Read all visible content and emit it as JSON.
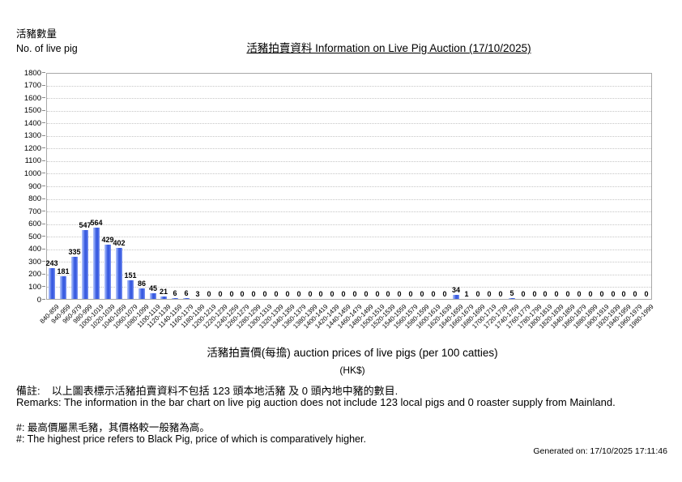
{
  "header": {
    "y_axis_label_zh": "活豬數量",
    "y_axis_label_en": "No. of live pig",
    "title": "活豬拍賣資料 Information on Live Pig Auction (17/10/2025)"
  },
  "chart_data": {
    "type": "bar",
    "title": "活豬拍賣資料 Information on Live Pig Auction (17/10/2025)",
    "categories": [
      "840-859",
      "940-959",
      "960-979",
      "980-999",
      "1000-1019",
      "1020-1039",
      "1040-1059",
      "1060-1079",
      "1080-1099",
      "1100-1119",
      "1120-1139",
      "1140-1159",
      "1160-1179",
      "1180-1199",
      "1200-1219",
      "1220-1239",
      "1240-1259",
      "1260-1279",
      "1280-1299",
      "1300-1319",
      "1320-1339",
      "1340-1359",
      "1360-1379",
      "1380-1399",
      "1400-1419",
      "1420-1439",
      "1440-1459",
      "1460-1479",
      "1480-1499",
      "1500-1519",
      "1520-1539",
      "1540-1559",
      "1560-1579",
      "1580-1599",
      "1600-1619",
      "1620-1639",
      "1640-1659",
      "1660-1679",
      "1680-1699",
      "1700-1719",
      "1720-1739",
      "1740-1759",
      "1760-1779",
      "1780-1799",
      "1800-1819",
      "1820-1839",
      "1840-1859",
      "1860-1879",
      "1880-1899",
      "1900-1919",
      "1920-1939",
      "1940-1959",
      "1960-1979",
      "1980-1999"
    ],
    "values": [
      243,
      181,
      335,
      547,
      564,
      429,
      402,
      151,
      86,
      45,
      21,
      6,
      6,
      3,
      0,
      0,
      0,
      0,
      0,
      0,
      0,
      0,
      0,
      0,
      0,
      0,
      0,
      0,
      0,
      0,
      0,
      0,
      0,
      0,
      0,
      0,
      34,
      1,
      0,
      0,
      0,
      5,
      0,
      0,
      0,
      0,
      0,
      0,
      0,
      0,
      0,
      0,
      0,
      0
    ],
    "ylabel_zh": "活豬數量",
    "ylabel_en": "No. of live pig",
    "xlabel": "活豬拍賣價(每擔) auction prices of live pigs (per 100 catties)",
    "xlabel_unit": "(HK$)",
    "ylim": [
      0,
      1800
    ],
    "ytick_interval": 100,
    "grid": "horizontal-dotted",
    "legend": "none",
    "bar_color": "#3A5CE0",
    "bar_color_light": "#B4C4FA",
    "gridline_color": "#C6C6C6"
  },
  "footer": {
    "remarks_zh_label": "備註:",
    "remarks_zh_text": "以上圖表標示活豬拍賣資料不包括 123 頭本地活豬 及 0 頭內地中豬的數目.",
    "remarks_en": "Remarks: The information in the bar chart on live pig auction does not include 123 local pigs and 0 roaster supply from Mainland.",
    "note_zh": "#: 最高價屬黑毛豬，其價格較一般豬為高。",
    "note_en": "#: The highest price refers to Black Pig, price of which is comparatively higher.",
    "generated": "Generated on: 17/10/2025 17:11:46"
  }
}
